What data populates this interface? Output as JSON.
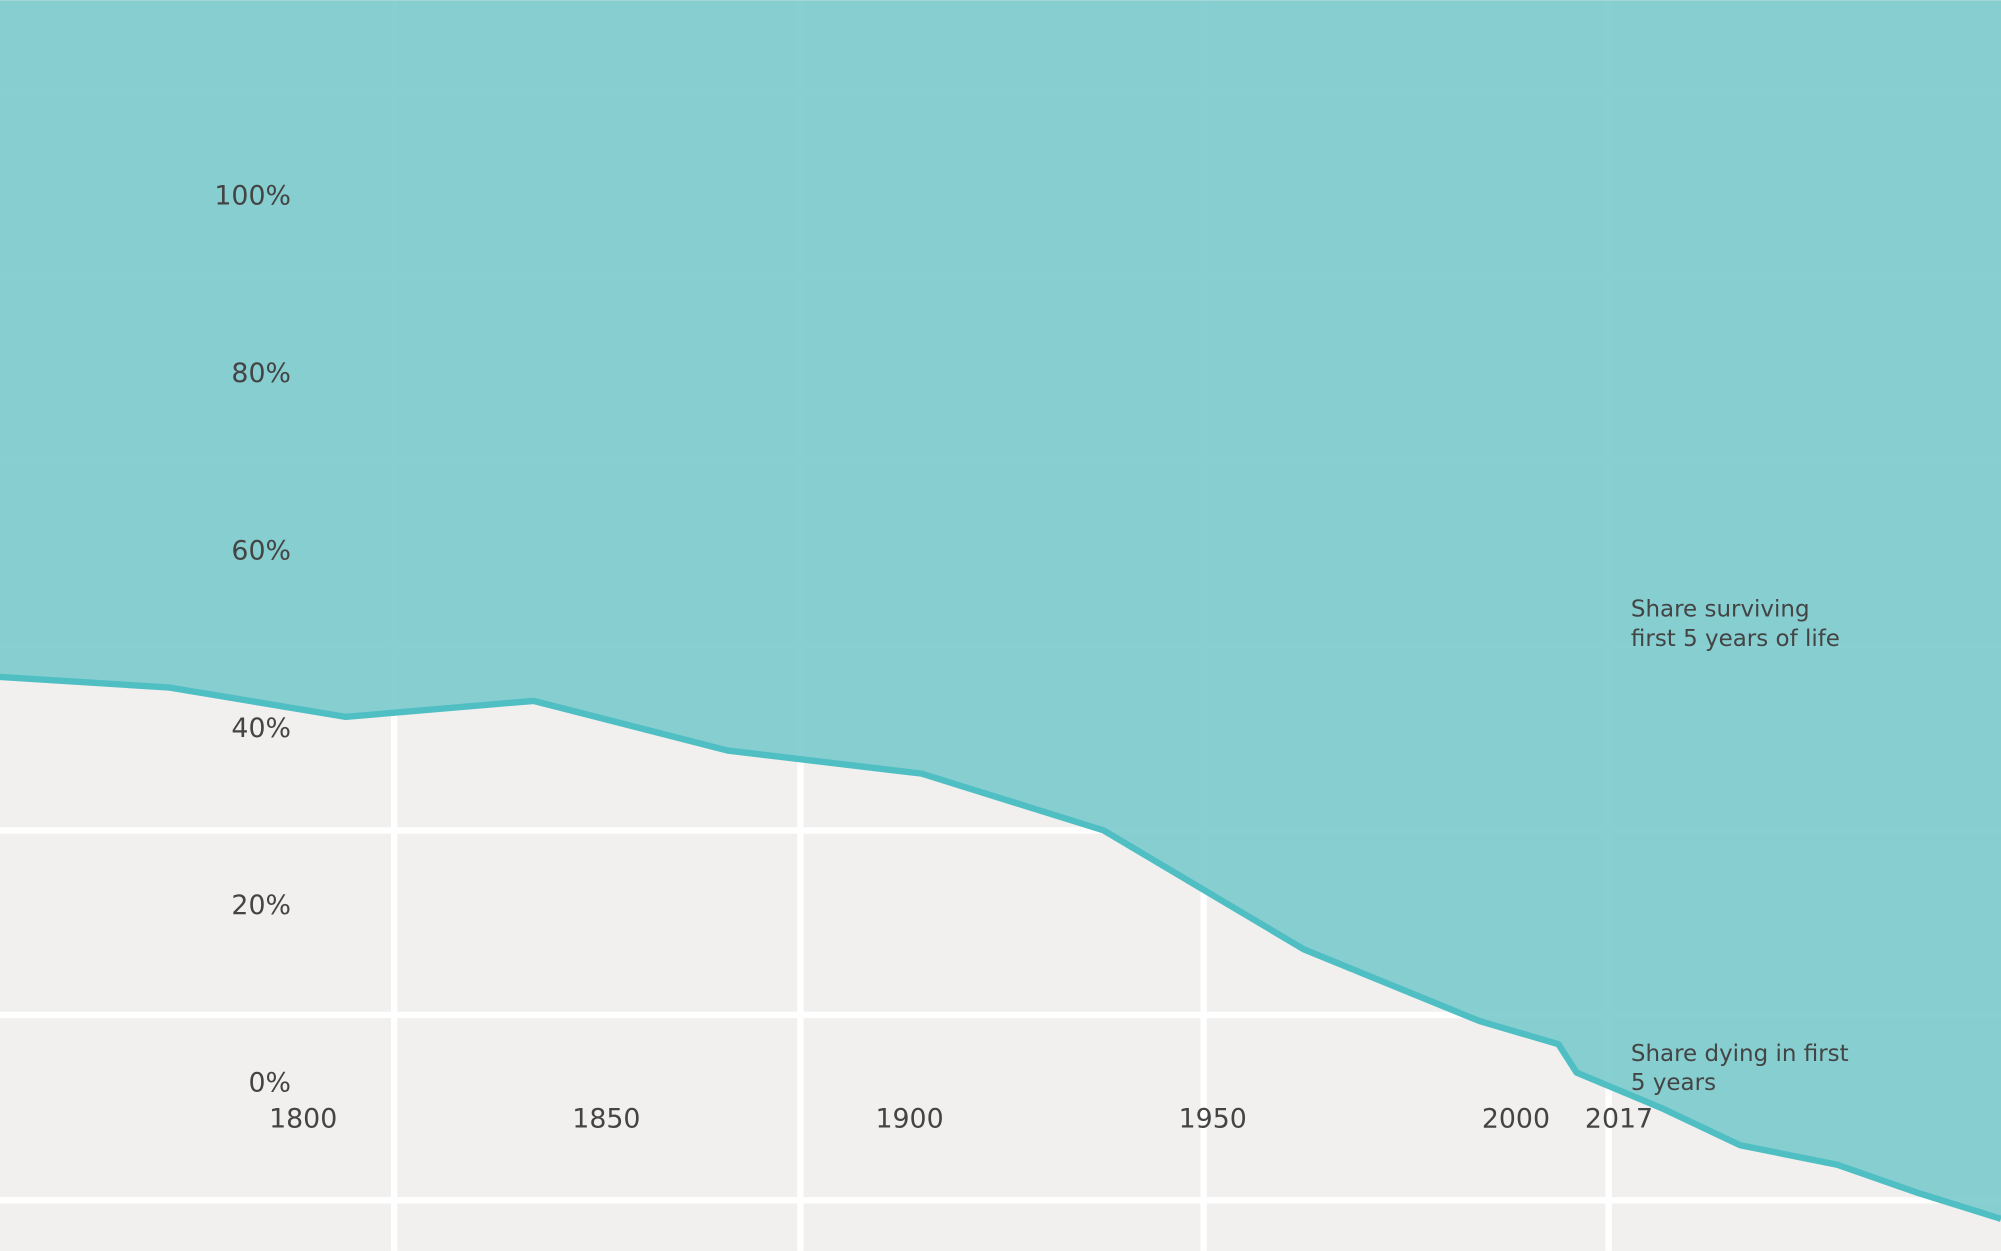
{
  "chart_data": {
    "type": "area",
    "x": [
      1750,
      1778,
      1807,
      1838,
      1870,
      1902,
      1932,
      1965,
      1994,
      2007,
      2010,
      2024,
      2037,
      2053,
      2066,
      2080
    ],
    "series": [
      {
        "name": "Share surviving first 5 years of life",
        "color": "#4fbfc3",
        "values": [
          45.9,
          44.7,
          41.4,
          43.2,
          37.6,
          35.0,
          28.6,
          15.2,
          7.1,
          4.5,
          1.3,
          -2.7,
          -6.9,
          -9.1,
          -12.2,
          -15.2
        ]
      }
    ],
    "xlim": [
      1750,
      2080
    ],
    "ylim": [
      -18.8,
      122.2
    ],
    "xticks": [
      1800,
      1850,
      1900,
      1950,
      2000,
      2017
    ],
    "yticks": [
      {
        "value": 0,
        "label": "0%"
      },
      {
        "value": 20,
        "label": "20%"
      },
      {
        "value": 40,
        "label": "40%"
      },
      {
        "value": 60,
        "label": "60%"
      },
      {
        "value": 80,
        "label": "80%"
      },
      {
        "value": 100,
        "label": "100%"
      }
    ],
    "xgrid": [
      1815,
      1882,
      1948.5,
      2015.3
    ],
    "ygrid": [
      111.8,
      91.1,
      70.4,
      49.5,
      28.6,
      7.8,
      -13.1
    ],
    "annotations": [
      {
        "lines": [
          "Share surviving",
          "first 5 years of life"
        ],
        "color": "#1d6e72"
      },
      {
        "lines": [
          "Share dying in first",
          "5 years"
        ],
        "color": "#7a2626"
      }
    ]
  }
}
